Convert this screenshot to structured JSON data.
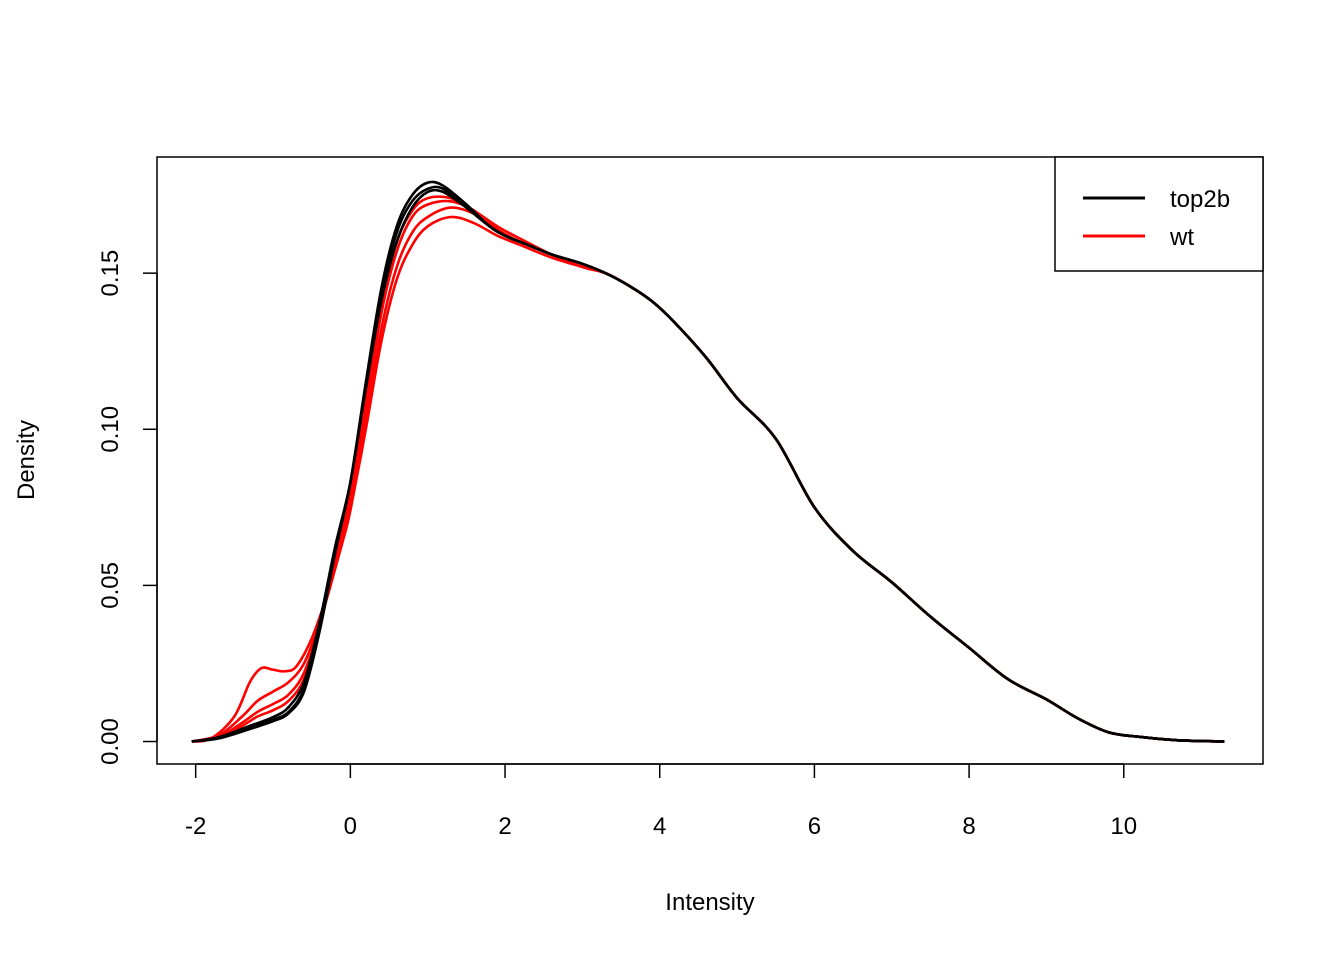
{
  "chart_data": {
    "type": "line",
    "xlabel": "Intensity",
    "ylabel": "Density",
    "xlim": [
      -2.5,
      11.8
    ],
    "ylim": [
      -0.0072,
      0.1872
    ],
    "x_ticks": [
      -2,
      0,
      2,
      4,
      6,
      8,
      10
    ],
    "y_ticks": [
      0.0,
      0.05,
      0.1,
      0.15
    ],
    "y_tick_labels": [
      "0.00",
      "0.05",
      "0.10",
      "0.15"
    ],
    "grid": false,
    "legend": {
      "position": "top-right",
      "entries": [
        {
          "label": "top2b",
          "color": "#000000"
        },
        {
          "label": "wt",
          "color": "#ff0000"
        }
      ]
    },
    "series": [
      {
        "group": "top2b",
        "color": "#000000",
        "points": [
          [
            -2.05,
            0.0
          ],
          [
            -1.7,
            0.001
          ],
          [
            -1.3,
            0.004
          ],
          [
            -1.0,
            0.0065
          ],
          [
            -0.8,
            0.009
          ],
          [
            -0.6,
            0.016
          ],
          [
            -0.4,
            0.035
          ],
          [
            -0.2,
            0.06
          ],
          [
            0.0,
            0.083
          ],
          [
            0.2,
            0.115
          ],
          [
            0.4,
            0.145
          ],
          [
            0.6,
            0.165
          ],
          [
            0.8,
            0.175
          ],
          [
            1.0,
            0.179
          ],
          [
            1.2,
            0.178
          ],
          [
            1.5,
            0.172
          ],
          [
            1.8,
            0.165
          ],
          [
            2.0,
            0.162
          ],
          [
            2.3,
            0.159
          ],
          [
            2.6,
            0.156
          ],
          [
            3.0,
            0.153
          ],
          [
            3.3,
            0.15
          ],
          [
            3.6,
            0.146
          ],
          [
            3.9,
            0.141
          ],
          [
            4.2,
            0.134
          ],
          [
            4.6,
            0.123
          ],
          [
            5.0,
            0.11
          ],
          [
            5.5,
            0.097
          ],
          [
            6.0,
            0.075
          ],
          [
            6.5,
            0.061
          ],
          [
            7.0,
            0.051
          ],
          [
            7.5,
            0.04
          ],
          [
            8.0,
            0.03
          ],
          [
            8.5,
            0.02
          ],
          [
            9.0,
            0.0135
          ],
          [
            9.4,
            0.0075
          ],
          [
            9.8,
            0.003
          ],
          [
            10.2,
            0.0015
          ],
          [
            10.7,
            0.0004
          ],
          [
            11.3,
            0.0
          ]
        ]
      },
      {
        "group": "top2b",
        "color": "#000000",
        "points": [
          [
            -2.05,
            0.0
          ],
          [
            -1.7,
            0.0012
          ],
          [
            -1.3,
            0.0045
          ],
          [
            -1.0,
            0.007
          ],
          [
            -0.8,
            0.0095
          ],
          [
            -0.6,
            0.017
          ],
          [
            -0.4,
            0.036
          ],
          [
            -0.2,
            0.061
          ],
          [
            0.0,
            0.083
          ],
          [
            0.2,
            0.114
          ],
          [
            0.4,
            0.143
          ],
          [
            0.6,
            0.163
          ],
          [
            0.8,
            0.173
          ],
          [
            1.0,
            0.177
          ],
          [
            1.2,
            0.177
          ],
          [
            1.5,
            0.171
          ],
          [
            1.8,
            0.165
          ],
          [
            2.0,
            0.162
          ],
          [
            2.3,
            0.159
          ],
          [
            2.6,
            0.156
          ],
          [
            3.0,
            0.153
          ],
          [
            3.3,
            0.15
          ],
          [
            3.6,
            0.146
          ],
          [
            3.9,
            0.141
          ],
          [
            4.2,
            0.134
          ],
          [
            4.6,
            0.123
          ],
          [
            5.0,
            0.11
          ],
          [
            5.5,
            0.097
          ],
          [
            6.0,
            0.075
          ],
          [
            6.5,
            0.061
          ],
          [
            7.0,
            0.051
          ],
          [
            7.5,
            0.04
          ],
          [
            8.0,
            0.03
          ],
          [
            8.5,
            0.02
          ],
          [
            9.0,
            0.0135
          ],
          [
            9.4,
            0.0075
          ],
          [
            9.8,
            0.003
          ],
          [
            10.2,
            0.0015
          ],
          [
            10.7,
            0.0004
          ],
          [
            11.3,
            0.0
          ]
        ]
      },
      {
        "group": "top2b",
        "color": "#000000",
        "points": [
          [
            -2.05,
            0.0
          ],
          [
            -1.7,
            0.0014
          ],
          [
            -1.3,
            0.005
          ],
          [
            -1.0,
            0.0078
          ],
          [
            -0.8,
            0.011
          ],
          [
            -0.6,
            0.019
          ],
          [
            -0.4,
            0.038
          ],
          [
            -0.2,
            0.062
          ],
          [
            0.0,
            0.083
          ],
          [
            0.2,
            0.113
          ],
          [
            0.4,
            0.141
          ],
          [
            0.6,
            0.16
          ],
          [
            0.8,
            0.171
          ],
          [
            1.0,
            0.176
          ],
          [
            1.2,
            0.176
          ],
          [
            1.5,
            0.171
          ],
          [
            1.8,
            0.165
          ],
          [
            2.0,
            0.162
          ],
          [
            2.3,
            0.159
          ],
          [
            2.6,
            0.156
          ],
          [
            3.0,
            0.153
          ],
          [
            3.3,
            0.15
          ],
          [
            3.6,
            0.146
          ],
          [
            3.9,
            0.141
          ],
          [
            4.2,
            0.134
          ],
          [
            4.6,
            0.123
          ],
          [
            5.0,
            0.11
          ],
          [
            5.5,
            0.097
          ],
          [
            6.0,
            0.075
          ],
          [
            6.5,
            0.061
          ],
          [
            7.0,
            0.051
          ],
          [
            7.5,
            0.04
          ],
          [
            8.0,
            0.03
          ],
          [
            8.5,
            0.02
          ],
          [
            9.0,
            0.0135
          ],
          [
            9.4,
            0.0075
          ],
          [
            9.8,
            0.003
          ],
          [
            10.2,
            0.0015
          ],
          [
            10.7,
            0.0004
          ],
          [
            11.3,
            0.0
          ]
        ]
      },
      {
        "group": "wt",
        "color": "#ff0000",
        "points": [
          [
            -2.05,
            0.0
          ],
          [
            -1.8,
            0.001
          ],
          [
            -1.5,
            0.008
          ],
          [
            -1.3,
            0.019
          ],
          [
            -1.15,
            0.0235
          ],
          [
            -1.0,
            0.023
          ],
          [
            -0.85,
            0.0225
          ],
          [
            -0.7,
            0.024
          ],
          [
            -0.5,
            0.033
          ],
          [
            -0.3,
            0.047
          ],
          [
            -0.1,
            0.064
          ],
          [
            0.0,
            0.074
          ],
          [
            0.2,
            0.1
          ],
          [
            0.4,
            0.128
          ],
          [
            0.6,
            0.148
          ],
          [
            0.8,
            0.159
          ],
          [
            1.0,
            0.165
          ],
          [
            1.3,
            0.168
          ],
          [
            1.6,
            0.166
          ],
          [
            1.9,
            0.162
          ],
          [
            2.2,
            0.159
          ],
          [
            2.6,
            0.155
          ],
          [
            3.0,
            0.152
          ],
          [
            3.3,
            0.15
          ],
          [
            3.6,
            0.146
          ],
          [
            3.9,
            0.141
          ],
          [
            4.2,
            0.134
          ],
          [
            4.6,
            0.123
          ],
          [
            5.0,
            0.11
          ],
          [
            5.5,
            0.097
          ],
          [
            6.0,
            0.075
          ],
          [
            6.5,
            0.061
          ],
          [
            7.0,
            0.051
          ],
          [
            7.5,
            0.04
          ],
          [
            8.0,
            0.03
          ],
          [
            8.5,
            0.02
          ],
          [
            9.0,
            0.0135
          ],
          [
            9.4,
            0.0075
          ],
          [
            9.8,
            0.003
          ],
          [
            10.2,
            0.0015
          ],
          [
            10.7,
            0.0004
          ],
          [
            11.3,
            0.0
          ]
        ]
      },
      {
        "group": "wt",
        "color": "#ff0000",
        "points": [
          [
            -2.05,
            0.0
          ],
          [
            -1.7,
            0.002
          ],
          [
            -1.4,
            0.008
          ],
          [
            -1.2,
            0.013
          ],
          [
            -1.0,
            0.016
          ],
          [
            -0.8,
            0.019
          ],
          [
            -0.6,
            0.025
          ],
          [
            -0.4,
            0.038
          ],
          [
            -0.2,
            0.055
          ],
          [
            0.0,
            0.075
          ],
          [
            0.2,
            0.103
          ],
          [
            0.4,
            0.132
          ],
          [
            0.6,
            0.152
          ],
          [
            0.8,
            0.163
          ],
          [
            1.0,
            0.168
          ],
          [
            1.3,
            0.171
          ],
          [
            1.6,
            0.169
          ],
          [
            1.9,
            0.164
          ],
          [
            2.2,
            0.16
          ],
          [
            2.6,
            0.156
          ],
          [
            3.0,
            0.152
          ],
          [
            3.3,
            0.15
          ],
          [
            3.6,
            0.146
          ],
          [
            3.9,
            0.141
          ],
          [
            4.2,
            0.134
          ],
          [
            4.6,
            0.123
          ],
          [
            5.0,
            0.11
          ],
          [
            5.5,
            0.097
          ],
          [
            6.0,
            0.075
          ],
          [
            6.5,
            0.061
          ],
          [
            7.0,
            0.051
          ],
          [
            7.5,
            0.04
          ],
          [
            8.0,
            0.03
          ],
          [
            8.5,
            0.02
          ],
          [
            9.0,
            0.0135
          ],
          [
            9.4,
            0.0075
          ],
          [
            9.8,
            0.003
          ],
          [
            10.2,
            0.0015
          ],
          [
            10.7,
            0.0004
          ],
          [
            11.3,
            0.0
          ]
        ]
      },
      {
        "group": "wt",
        "color": "#ff0000",
        "points": [
          [
            -2.05,
            0.0
          ],
          [
            -1.7,
            0.0015
          ],
          [
            -1.4,
            0.006
          ],
          [
            -1.2,
            0.0095
          ],
          [
            -1.0,
            0.012
          ],
          [
            -0.8,
            0.015
          ],
          [
            -0.6,
            0.022
          ],
          [
            -0.4,
            0.037
          ],
          [
            -0.2,
            0.058
          ],
          [
            0.0,
            0.078
          ],
          [
            0.2,
            0.107
          ],
          [
            0.4,
            0.137
          ],
          [
            0.6,
            0.157
          ],
          [
            0.8,
            0.168
          ],
          [
            1.0,
            0.172
          ],
          [
            1.3,
            0.173
          ],
          [
            1.6,
            0.17
          ],
          [
            1.9,
            0.164
          ],
          [
            2.2,
            0.16
          ],
          [
            2.6,
            0.156
          ],
          [
            3.0,
            0.152
          ],
          [
            3.3,
            0.15
          ],
          [
            3.6,
            0.146
          ],
          [
            3.9,
            0.141
          ],
          [
            4.2,
            0.134
          ],
          [
            4.6,
            0.123
          ],
          [
            5.0,
            0.11
          ],
          [
            5.5,
            0.097
          ],
          [
            6.0,
            0.075
          ],
          [
            6.5,
            0.061
          ],
          [
            7.0,
            0.051
          ],
          [
            7.5,
            0.04
          ],
          [
            8.0,
            0.03
          ],
          [
            8.5,
            0.02
          ],
          [
            9.0,
            0.0135
          ],
          [
            9.4,
            0.0075
          ],
          [
            9.8,
            0.003
          ],
          [
            10.2,
            0.0015
          ],
          [
            10.7,
            0.0004
          ],
          [
            11.3,
            0.0
          ]
        ]
      },
      {
        "group": "wt",
        "color": "#ff0000",
        "points": [
          [
            -2.05,
            0.0
          ],
          [
            -1.7,
            0.0013
          ],
          [
            -1.4,
            0.005
          ],
          [
            -1.2,
            0.008
          ],
          [
            -1.0,
            0.01
          ],
          [
            -0.8,
            0.013
          ],
          [
            -0.6,
            0.02
          ],
          [
            -0.4,
            0.036
          ],
          [
            -0.2,
            0.059
          ],
          [
            0.0,
            0.08
          ],
          [
            0.2,
            0.11
          ],
          [
            0.4,
            0.14
          ],
          [
            0.6,
            0.16
          ],
          [
            0.8,
            0.17
          ],
          [
            1.0,
            0.174
          ],
          [
            1.3,
            0.174
          ],
          [
            1.6,
            0.17
          ],
          [
            1.9,
            0.165
          ],
          [
            2.2,
            0.161
          ],
          [
            2.6,
            0.156
          ],
          [
            3.0,
            0.152
          ],
          [
            3.3,
            0.15
          ],
          [
            3.6,
            0.146
          ],
          [
            3.9,
            0.141
          ],
          [
            4.2,
            0.134
          ],
          [
            4.6,
            0.123
          ],
          [
            5.0,
            0.11
          ],
          [
            5.5,
            0.097
          ],
          [
            6.0,
            0.075
          ],
          [
            6.5,
            0.061
          ],
          [
            7.0,
            0.051
          ],
          [
            7.5,
            0.04
          ],
          [
            8.0,
            0.03
          ],
          [
            8.5,
            0.02
          ],
          [
            9.0,
            0.0135
          ],
          [
            9.4,
            0.0075
          ],
          [
            9.8,
            0.003
          ],
          [
            10.2,
            0.0015
          ],
          [
            10.7,
            0.0004
          ],
          [
            11.3,
            0.0
          ]
        ]
      }
    ]
  }
}
